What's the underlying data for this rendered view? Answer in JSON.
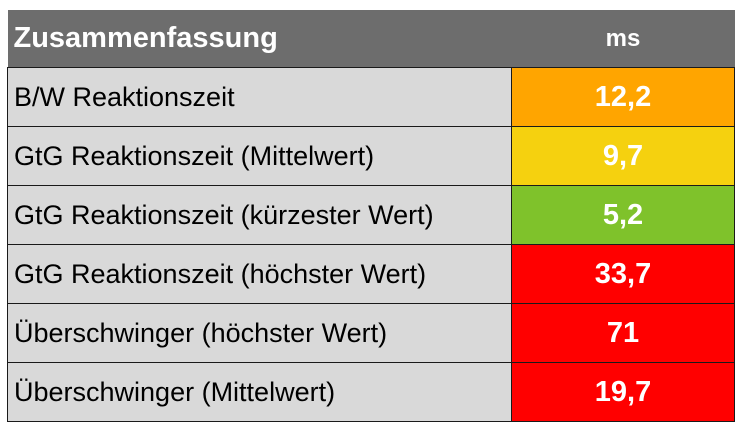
{
  "table": {
    "header": {
      "label": "Zusammenfassung",
      "unit": "ms"
    },
    "rows": [
      {
        "label": "B/W Reaktionszeit",
        "value": "12,2",
        "color": "#ffa500"
      },
      {
        "label": "GtG Reaktionszeit (Mittelwert)",
        "value": "9,7",
        "color": "#f5d10f"
      },
      {
        "label": "GtG Reaktionszeit (kürzester Wert)",
        "value": "5,2",
        "color": "#7fc22b"
      },
      {
        "label": "GtG Reaktionszeit (höchster Wert)",
        "value": "33,7",
        "color": "#ff0000"
      },
      {
        "label": "Überschwinger (höchster Wert)",
        "value": "71",
        "color": "#ff0000"
      },
      {
        "label": "Überschwinger (Mittelwert)",
        "value": "19,7",
        "color": "#ff0000"
      }
    ]
  }
}
